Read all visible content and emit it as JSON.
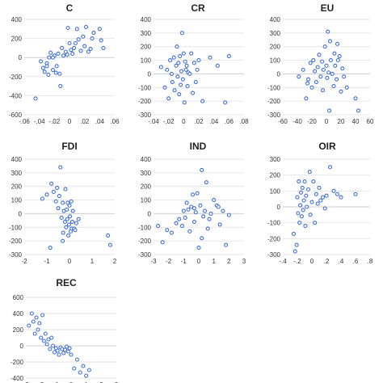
{
  "style": {
    "marker_color": "#3f6fd6",
    "grid_color": "#e6e6e6"
  },
  "chart_data": [
    {
      "type": "scatter",
      "title": "C",
      "xlim": [
        -0.06,
        0.06
      ],
      "ylim": [
        -600,
        400
      ],
      "xticks": [
        -0.06,
        -0.04,
        -0.02,
        0,
        0.02,
        0.04,
        0.06
      ],
      "xtick_labels": [
        "-.06",
        "-.04",
        "-.02",
        "0",
        ".02",
        ".04",
        ".06"
      ],
      "yticks": [
        -600,
        -400,
        -200,
        0,
        200,
        400
      ],
      "ytick_labels": [
        "-600",
        "-400",
        "-200",
        "0",
        "200",
        "400"
      ],
      "grid": true,
      "legend": "none",
      "x": [
        -0.045,
        -0.038,
        -0.035,
        -0.033,
        -0.03,
        -0.028,
        -0.027,
        -0.025,
        -0.022,
        -0.02,
        -0.018,
        -0.017,
        -0.015,
        -0.013,
        -0.012,
        -0.01,
        -0.008,
        -0.005,
        -0.003,
        -0.002,
        0.0,
        0.002,
        0.004,
        0.006,
        0.01,
        0.012,
        0.015,
        0.018,
        0.02,
        0.022,
        0.025,
        0.028,
        0.03,
        0.032,
        0.04,
        0.042,
        0.045,
        -0.022,
        -0.03,
        0.008
      ],
      "y": [
        -430,
        -40,
        -110,
        -150,
        -60,
        -180,
        0,
        50,
        -130,
        20,
        -160,
        -90,
        40,
        -170,
        -300,
        100,
        20,
        60,
        30,
        310,
        150,
        80,
        40,
        100,
        300,
        190,
        70,
        220,
        120,
        320,
        60,
        90,
        200,
        260,
        300,
        180,
        100,
        0,
        -90,
        150
      ]
    },
    {
      "type": "scatter",
      "title": "CR",
      "xlim": [
        -0.04,
        0.08
      ],
      "ylim": [
        -300,
        400
      ],
      "xticks": [
        -0.04,
        -0.02,
        0,
        0.02,
        0.04,
        0.06,
        0.08
      ],
      "xtick_labels": [
        "-.04",
        "-.02",
        "0",
        ".02",
        ".04",
        ".06",
        ".08"
      ],
      "yticks": [
        -300,
        -200,
        -100,
        0,
        100,
        200,
        300,
        400
      ],
      "ytick_labels": [
        "-300",
        "-200",
        "-100",
        "0",
        "100",
        "200",
        "300",
        "400"
      ],
      "grid": true,
      "legend": "none",
      "x": [
        -0.03,
        -0.025,
        -0.022,
        -0.02,
        -0.018,
        -0.016,
        -0.015,
        -0.013,
        -0.012,
        -0.01,
        -0.009,
        -0.008,
        -0.007,
        -0.006,
        -0.005,
        -0.004,
        -0.003,
        -0.002,
        -0.001,
        0.0,
        0.001,
        0.002,
        0.003,
        0.004,
        0.005,
        0.006,
        0.008,
        0.01,
        0.012,
        0.014,
        0.016,
        0.018,
        0.02,
        0.025,
        0.035,
        0.045,
        0.055,
        0.06
      ],
      "y": [
        50,
        -100,
        30,
        -180,
        100,
        0,
        -60,
        120,
        -120,
        60,
        200,
        -20,
        80,
        -150,
        130,
        -80,
        20,
        300,
        -40,
        150,
        -210,
        90,
        30,
        60,
        -90,
        10,
        0,
        150,
        -140,
        80,
        -60,
        30,
        100,
        -200,
        120,
        60,
        -210,
        130
      ]
    },
    {
      "type": "scatter",
      "title": "EU",
      "xlim": [
        -60,
        60
      ],
      "ylim": [
        -300,
        400
      ],
      "xticks": [
        -60,
        -40,
        -20,
        0,
        20,
        40,
        60
      ],
      "xtick_labels": [
        "-60",
        "-40",
        "-20",
        "0",
        "20",
        "40",
        "60"
      ],
      "yticks": [
        -300,
        -200,
        -100,
        0,
        100,
        200,
        300,
        400
      ],
      "ytick_labels": [
        "-300",
        "-200",
        "-100",
        "0",
        "100",
        "200",
        "300",
        "400"
      ],
      "grid": true,
      "legend": "none",
      "x": [
        -38,
        -32,
        -28,
        -25,
        -22,
        -20,
        -18,
        -16,
        -14,
        -12,
        -10,
        -8,
        -6,
        -5,
        -4,
        -2,
        0,
        1,
        2,
        4,
        5,
        6,
        8,
        10,
        11,
        12,
        14,
        15,
        16,
        18,
        20,
        22,
        24,
        28,
        40,
        44,
        -26,
        3
      ],
      "y": [
        -20,
        30,
        -180,
        -40,
        80,
        -100,
        100,
        20,
        -60,
        50,
        140,
        -20,
        90,
        -120,
        30,
        200,
        60,
        -30,
        310,
        -270,
        240,
        100,
        0,
        -90,
        150,
        60,
        -40,
        220,
        100,
        130,
        -130,
        40,
        -20,
        -100,
        -180,
        -270,
        -70,
        10
      ]
    },
    {
      "type": "scatter",
      "title": "FDI",
      "xlim": [
        -2,
        2
      ],
      "ylim": [
        -300,
        400
      ],
      "xticks": [
        -2,
        -1,
        0,
        1,
        2
      ],
      "xtick_labels": [
        "-2",
        "-1",
        "0",
        "1",
        "2"
      ],
      "yticks": [
        -300,
        -200,
        -100,
        0,
        100,
        200,
        300,
        400
      ],
      "ytick_labels": [
        "-300",
        "-200",
        "-100",
        "0",
        "100",
        "200",
        "300",
        "400"
      ],
      "grid": true,
      "legend": "none",
      "x": [
        -1.2,
        -1.0,
        -0.8,
        -0.7,
        -0.6,
        -0.55,
        -0.5,
        -0.45,
        -0.4,
        -0.35,
        -0.3,
        -0.28,
        -0.25,
        -0.2,
        -0.18,
        -0.15,
        -0.12,
        -0.1,
        -0.08,
        -0.05,
        -0.02,
        0.0,
        0.02,
        0.05,
        0.08,
        0.1,
        0.12,
        0.15,
        0.2,
        0.25,
        0.3,
        0.4,
        -0.3,
        1.7,
        1.8,
        -0.85
      ],
      "y": [
        110,
        140,
        220,
        160,
        90,
        190,
        40,
        130,
        340,
        -30,
        80,
        -140,
        20,
        -60,
        180,
        -100,
        30,
        -40,
        80,
        -160,
        -80,
        60,
        -20,
        -130,
        90,
        -110,
        -60,
        20,
        -110,
        -120,
        -70,
        -40,
        -200,
        -160,
        -230,
        -250
      ]
    },
    {
      "type": "scatter",
      "title": "IND",
      "xlim": [
        -3,
        3
      ],
      "ylim": [
        -300,
        400
      ],
      "xticks": [
        -3,
        -2,
        -1,
        0,
        1,
        2,
        3
      ],
      "xtick_labels": [
        "-3",
        "-2",
        "-1",
        "0",
        "1",
        "2",
        "3"
      ],
      "yticks": [
        -300,
        -200,
        -100,
        0,
        100,
        200,
        300,
        400
      ],
      "ytick_labels": [
        "-300",
        "-200",
        "-100",
        "0",
        "100",
        "200",
        "300",
        "400"
      ],
      "grid": true,
      "legend": "none",
      "x": [
        -2.7,
        -2.4,
        -2.1,
        -1.8,
        -1.5,
        -1.3,
        -1.1,
        -1.0,
        -0.9,
        -0.8,
        -0.7,
        -0.6,
        -0.5,
        -0.4,
        -0.3,
        -0.2,
        -0.1,
        0.0,
        0.1,
        0.2,
        0.3,
        0.4,
        0.5,
        0.6,
        0.7,
        0.8,
        1.0,
        1.2,
        1.4,
        1.6,
        1.8,
        2.0,
        0.2,
        -0.3,
        1.3
      ],
      "y": [
        -90,
        -210,
        -120,
        -140,
        -70,
        -40,
        -90,
        20,
        -30,
        80,
        30,
        -130,
        50,
        140,
        -60,
        10,
        150,
        -250,
        60,
        320,
        -20,
        20,
        230,
        -110,
        -40,
        0,
        100,
        60,
        -80,
        20,
        -230,
        -10,
        -180,
        40,
        50
      ]
    },
    {
      "type": "scatter",
      "title": "OIR",
      "xlim": [
        -0.4,
        0.8
      ],
      "ylim": [
        -300,
        300
      ],
      "xticks": [
        -0.4,
        -0.2,
        0,
        0.2,
        0.4,
        0.6,
        0.8
      ],
      "xtick_labels": [
        "-.4",
        "-.2",
        "0",
        ".2",
        ".4",
        ".6",
        ".8"
      ],
      "yticks": [
        -300,
        -200,
        -100,
        0,
        100,
        200,
        300
      ],
      "ytick_labels": [
        "-300",
        "-200",
        "-100",
        "0",
        "100",
        "200",
        "300"
      ],
      "grid": true,
      "legend": "none",
      "x": [
        -0.25,
        -0.23,
        -0.21,
        -0.2,
        -0.19,
        -0.18,
        -0.17,
        -0.16,
        -0.15,
        -0.14,
        -0.13,
        -0.12,
        -0.11,
        -0.1,
        -0.09,
        -0.08,
        -0.07,
        -0.05,
        -0.03,
        -0.02,
        0.0,
        0.02,
        0.04,
        0.06,
        0.08,
        0.1,
        0.12,
        0.15,
        0.18,
        0.2,
        0.25,
        0.3,
        0.35,
        0.4,
        0.6
      ],
      "y": [
        -170,
        -280,
        -240,
        60,
        -40,
        160,
        -100,
        10,
        90,
        -60,
        120,
        -20,
        40,
        160,
        -120,
        70,
        0,
        110,
        220,
        -50,
        30,
        160,
        -100,
        80,
        20,
        120,
        40,
        60,
        -10,
        70,
        250,
        100,
        80,
        60,
        80
      ]
    },
    {
      "type": "scatter",
      "title": "REC",
      "xlim": [
        -3,
        3
      ],
      "ylim": [
        -400,
        600
      ],
      "xticks": [
        -3,
        -2,
        -1,
        0,
        1,
        2,
        3
      ],
      "xtick_labels": [
        "-3",
        "-2",
        "-1",
        "0",
        "1",
        "2",
        "3"
      ],
      "yticks": [
        -400,
        -200,
        0,
        200,
        400,
        600
      ],
      "ytick_labels": [
        "-400",
        "-200",
        "0",
        "200",
        "400",
        "600"
      ],
      "grid": true,
      "legend": "none",
      "x": [
        -2.8,
        -2.6,
        -2.5,
        -2.4,
        -2.3,
        -2.2,
        -2.1,
        -2.0,
        -1.9,
        -1.8,
        -1.7,
        -1.6,
        -1.5,
        -1.4,
        -1.3,
        -1.2,
        -1.1,
        -1.0,
        -0.9,
        -0.8,
        -0.7,
        -0.6,
        -0.5,
        -0.4,
        -0.3,
        -0.2,
        -0.1,
        0.0,
        0.2,
        0.4,
        0.6,
        0.8,
        1.0,
        1.2
      ],
      "y": [
        250,
        400,
        300,
        150,
        350,
        200,
        280,
        100,
        380,
        60,
        150,
        20,
        80,
        -40,
        100,
        0,
        -80,
        -30,
        -60,
        -110,
        -20,
        -40,
        -90,
        -50,
        -10,
        -70,
        -30,
        -110,
        -280,
        -170,
        -330,
        -250,
        -370,
        -300
      ]
    }
  ]
}
